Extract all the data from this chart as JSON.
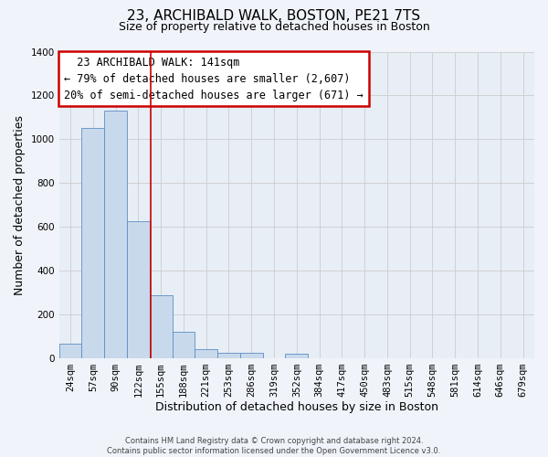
{
  "title": "23, ARCHIBALD WALK, BOSTON, PE21 7TS",
  "subtitle": "Size of property relative to detached houses in Boston",
  "xlabel": "Distribution of detached houses by size in Boston",
  "ylabel": "Number of detached properties",
  "bar_labels": [
    "24sqm",
    "57sqm",
    "90sqm",
    "122sqm",
    "155sqm",
    "188sqm",
    "221sqm",
    "253sqm",
    "286sqm",
    "319sqm",
    "352sqm",
    "384sqm",
    "417sqm",
    "450sqm",
    "483sqm",
    "515sqm",
    "548sqm",
    "581sqm",
    "614sqm",
    "646sqm",
    "679sqm"
  ],
  "bar_values": [
    65,
    1050,
    1130,
    625,
    285,
    120,
    40,
    25,
    25,
    0,
    20,
    0,
    0,
    0,
    0,
    0,
    0,
    0,
    0,
    0,
    0
  ],
  "bar_color": "#c9d9ec",
  "bar_edge_color": "#5b8ec4",
  "property_line_x": 3.55,
  "annotation_title": "23 ARCHIBALD WALK: 141sqm",
  "annotation_line1": "← 79% of detached houses are smaller (2,607)",
  "annotation_line2": "20% of semi-detached houses are larger (671) →",
  "annotation_box_color": "#ffffff",
  "annotation_box_edgecolor": "#cc0000",
  "vline_color": "#cc0000",
  "ylim": [
    0,
    1400
  ],
  "yticks": [
    0,
    200,
    400,
    600,
    800,
    1000,
    1200,
    1400
  ],
  "grid_color": "#cccccc",
  "bg_color": "#e8eef5",
  "fig_bg_color": "#f0f4fa",
  "footer_line1": "Contains HM Land Registry data © Crown copyright and database right 2024.",
  "footer_line2": "Contains public sector information licensed under the Open Government Licence v3.0.",
  "title_fontsize": 11,
  "subtitle_fontsize": 9,
  "label_fontsize": 9,
  "tick_fontsize": 7.5,
  "annotation_fontsize": 8.5
}
